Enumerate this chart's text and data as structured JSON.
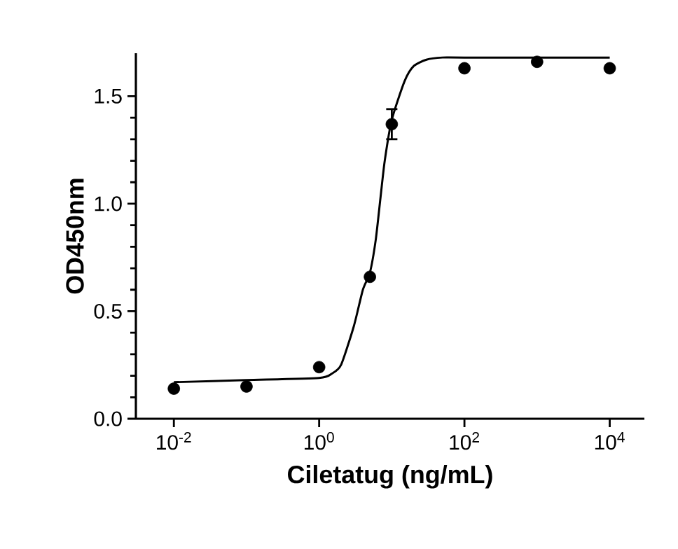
{
  "chart_data": {
    "type": "scatter",
    "xlabel": "Ciletatug (ng/mL)",
    "ylabel": "OD450nm",
    "log": "x",
    "grid": false,
    "xlim": [
      0.003,
      30000
    ],
    "ylim": [
      0,
      1.7
    ],
    "xticks": [
      {
        "value": 0.01,
        "label": "10$^{-2}$"
      },
      {
        "value": 1,
        "label": "10$^{0}$"
      },
      {
        "value": 100,
        "label": "10$^{2}$"
      },
      {
        "value": 10000,
        "label": "10$^{4}$"
      }
    ],
    "yticks": [
      {
        "value": 0,
        "label": "0.0"
      },
      0.5,
      {
        "value": 1,
        "label": "1.0"
      },
      1.5
    ],
    "series": [
      {
        "color": "#000000",
        "marker": "circle",
        "x": [
          0.01,
          0.1,
          1,
          5,
          10,
          100,
          1000,
          10000
        ],
        "values": [
          0.14,
          0.15,
          0.24,
          0.66,
          1.37,
          1.63,
          1.66,
          1.63
        ],
        "errors": [
          null,
          null,
          null,
          null,
          [
            1.3,
            1.44
          ],
          null,
          null,
          null
        ]
      },
      {
        "type": "line",
        "color": "#000000",
        "line_style": "solid",
        "marker": "none",
        "x": [
          0.01,
          0.1,
          1,
          1.5,
          2,
          3,
          4,
          5,
          6,
          7,
          8,
          10,
          15,
          20,
          30,
          50,
          100,
          10000
        ],
        "values": [
          0.17,
          0.18,
          0.19,
          0.21,
          0.25,
          0.43,
          0.6,
          0.68,
          0.83,
          1.03,
          1.2,
          1.39,
          1.57,
          1.64,
          1.67,
          1.68,
          1.68,
          1.68
        ]
      }
    ]
  }
}
